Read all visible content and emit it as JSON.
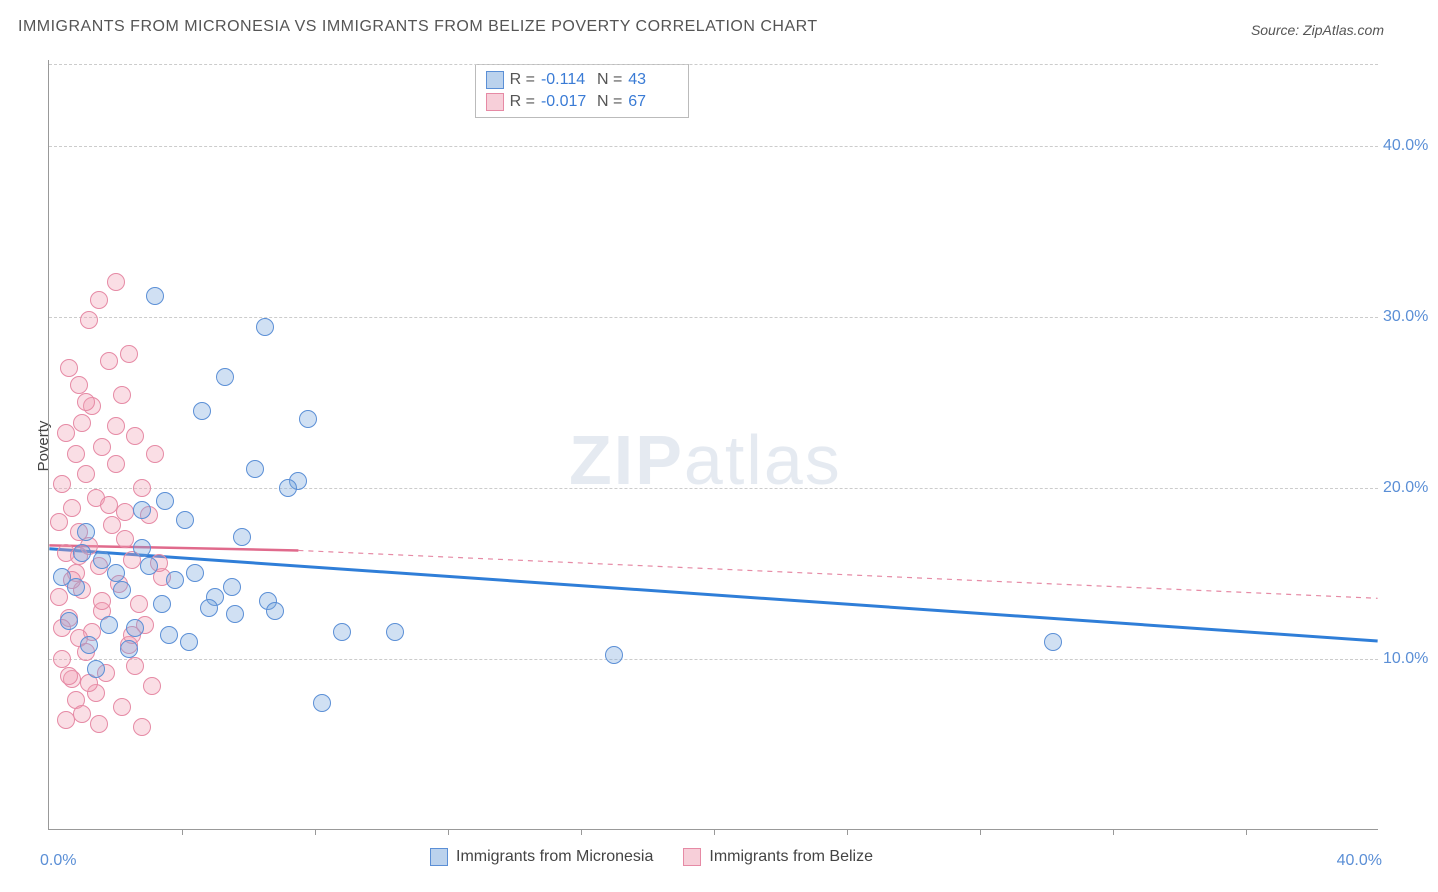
{
  "title": "IMMIGRANTS FROM MICRONESIA VS IMMIGRANTS FROM BELIZE POVERTY CORRELATION CHART",
  "source": "Source: ZipAtlas.com",
  "ylabel": "Poverty",
  "watermark_zip": "ZIP",
  "watermark_atlas": "atlas",
  "chart": {
    "type": "scatter",
    "xlim": [
      0,
      40
    ],
    "ylim": [
      0,
      45
    ],
    "y_ticks": [
      10,
      20,
      30,
      40
    ],
    "y_tick_labels": [
      "10.0%",
      "20.0%",
      "30.0%",
      "40.0%"
    ],
    "x_bottom_ticks": [
      4,
      8,
      12,
      16,
      20,
      24,
      28,
      32,
      36
    ],
    "x_min_label": "0.0%",
    "x_max_label": "40.0%",
    "background_color": "#ffffff",
    "grid_color": "#cccccc",
    "axis_color": "#999999",
    "tick_label_color": "#5b8fd6",
    "tick_fontsize": 16,
    "title_fontsize": 16,
    "title_color": "#555555",
    "point_radius": 9,
    "series": {
      "blue": {
        "label": "Immigrants from Micronesia",
        "fill": "rgba(120,165,220,0.35)",
        "stroke": "#5b8fd6",
        "R": "-0.114",
        "N": "43",
        "trend": {
          "x1": 0,
          "y1": 16.4,
          "x2": 40,
          "y2": 11.0,
          "color": "#2f7ed8",
          "width": 3,
          "dash": "none"
        },
        "points": [
          [
            3.2,
            31.2
          ],
          [
            6.5,
            29.4
          ],
          [
            5.3,
            26.5
          ],
          [
            4.6,
            24.5
          ],
          [
            7.8,
            24.0
          ],
          [
            6.2,
            21.1
          ],
          [
            7.5,
            20.4
          ],
          [
            7.2,
            20.0
          ],
          [
            2.8,
            18.7
          ],
          [
            4.1,
            18.1
          ],
          [
            5.8,
            17.1
          ],
          [
            1.0,
            16.2
          ],
          [
            1.6,
            15.8
          ],
          [
            3.0,
            15.4
          ],
          [
            4.4,
            15.0
          ],
          [
            3.8,
            14.6
          ],
          [
            0.8,
            14.2
          ],
          [
            2.2,
            14.0
          ],
          [
            5.0,
            13.6
          ],
          [
            6.6,
            13.4
          ],
          [
            3.4,
            13.2
          ],
          [
            4.8,
            13.0
          ],
          [
            5.6,
            12.6
          ],
          [
            0.6,
            12.2
          ],
          [
            1.8,
            12.0
          ],
          [
            2.6,
            11.8
          ],
          [
            8.8,
            11.6
          ],
          [
            10.4,
            11.6
          ],
          [
            3.6,
            11.4
          ],
          [
            4.2,
            11.0
          ],
          [
            1.2,
            10.8
          ],
          [
            2.4,
            10.6
          ],
          [
            17.0,
            10.2
          ],
          [
            30.2,
            11.0
          ],
          [
            8.2,
            7.4
          ],
          [
            1.4,
            9.4
          ],
          [
            2.0,
            15.0
          ],
          [
            2.8,
            16.5
          ],
          [
            3.5,
            19.2
          ],
          [
            1.1,
            17.4
          ],
          [
            0.4,
            14.8
          ],
          [
            5.5,
            14.2
          ],
          [
            6.8,
            12.8
          ]
        ]
      },
      "pink": {
        "label": "Immigrants from Belize",
        "fill": "rgba(240,160,180,0.35)",
        "stroke": "#e68aa5",
        "R": "-0.017",
        "N": "67",
        "trend_solid": {
          "x1": 0,
          "y1": 16.6,
          "x2": 7.5,
          "y2": 16.3,
          "color": "#e06a8c",
          "width": 2.5,
          "dash": "none"
        },
        "trend_dash": {
          "x1": 7.5,
          "y1": 16.3,
          "x2": 40,
          "y2": 13.5,
          "color": "#e68aa5",
          "width": 1.2,
          "dash": "5,5"
        },
        "points": [
          [
            2.0,
            32.0
          ],
          [
            1.5,
            31.0
          ],
          [
            1.2,
            29.8
          ],
          [
            2.4,
            27.8
          ],
          [
            1.8,
            27.4
          ],
          [
            0.6,
            27.0
          ],
          [
            0.9,
            26.0
          ],
          [
            2.2,
            25.4
          ],
          [
            1.3,
            24.8
          ],
          [
            1.0,
            23.8
          ],
          [
            0.5,
            23.2
          ],
          [
            2.6,
            23.0
          ],
          [
            1.6,
            22.4
          ],
          [
            0.8,
            22.0
          ],
          [
            3.2,
            22.0
          ],
          [
            2.0,
            21.4
          ],
          [
            1.1,
            20.8
          ],
          [
            0.4,
            20.2
          ],
          [
            2.8,
            20.0
          ],
          [
            1.4,
            19.4
          ],
          [
            0.7,
            18.8
          ],
          [
            3.0,
            18.4
          ],
          [
            1.9,
            17.8
          ],
          [
            0.9,
            17.4
          ],
          [
            2.3,
            17.0
          ],
          [
            1.2,
            16.6
          ],
          [
            0.5,
            16.2
          ],
          [
            2.5,
            15.8
          ],
          [
            1.5,
            15.4
          ],
          [
            0.8,
            15.0
          ],
          [
            3.4,
            14.8
          ],
          [
            2.1,
            14.4
          ],
          [
            1.0,
            14.0
          ],
          [
            0.3,
            13.6
          ],
          [
            2.7,
            13.2
          ],
          [
            1.6,
            12.8
          ],
          [
            0.6,
            12.4
          ],
          [
            2.9,
            12.0
          ],
          [
            1.3,
            11.6
          ],
          [
            0.9,
            11.2
          ],
          [
            2.4,
            10.8
          ],
          [
            1.1,
            10.4
          ],
          [
            0.4,
            10.0
          ],
          [
            2.6,
            9.6
          ],
          [
            1.7,
            9.2
          ],
          [
            0.7,
            8.8
          ],
          [
            3.1,
            8.4
          ],
          [
            1.4,
            8.0
          ],
          [
            0.8,
            7.6
          ],
          [
            2.2,
            7.2
          ],
          [
            1.0,
            6.8
          ],
          [
            0.5,
            6.4
          ],
          [
            2.8,
            6.0
          ],
          [
            1.5,
            6.2
          ],
          [
            0.6,
            9.0
          ],
          [
            3.3,
            15.6
          ],
          [
            1.8,
            19.0
          ],
          [
            0.3,
            18.0
          ],
          [
            2.0,
            23.6
          ],
          [
            1.1,
            25.0
          ],
          [
            0.7,
            14.6
          ],
          [
            2.5,
            11.4
          ],
          [
            1.2,
            8.6
          ],
          [
            0.9,
            16.0
          ],
          [
            1.6,
            13.4
          ],
          [
            0.4,
            11.8
          ],
          [
            2.3,
            18.6
          ]
        ]
      }
    }
  },
  "stats_box": {
    "pos_left_pct": 32,
    "rows": [
      {
        "swatch": "blue",
        "R_label": "R =",
        "R": "-0.114",
        "N_label": "N =",
        "N": "43"
      },
      {
        "swatch": "pink",
        "R_label": "R =",
        "R": "-0.017",
        "N_label": "N =",
        "N": "67"
      }
    ]
  },
  "legend": {
    "items": [
      {
        "swatch": "blue",
        "text": "Immigrants from Micronesia"
      },
      {
        "swatch": "pink",
        "text": "Immigrants from Belize"
      }
    ]
  }
}
